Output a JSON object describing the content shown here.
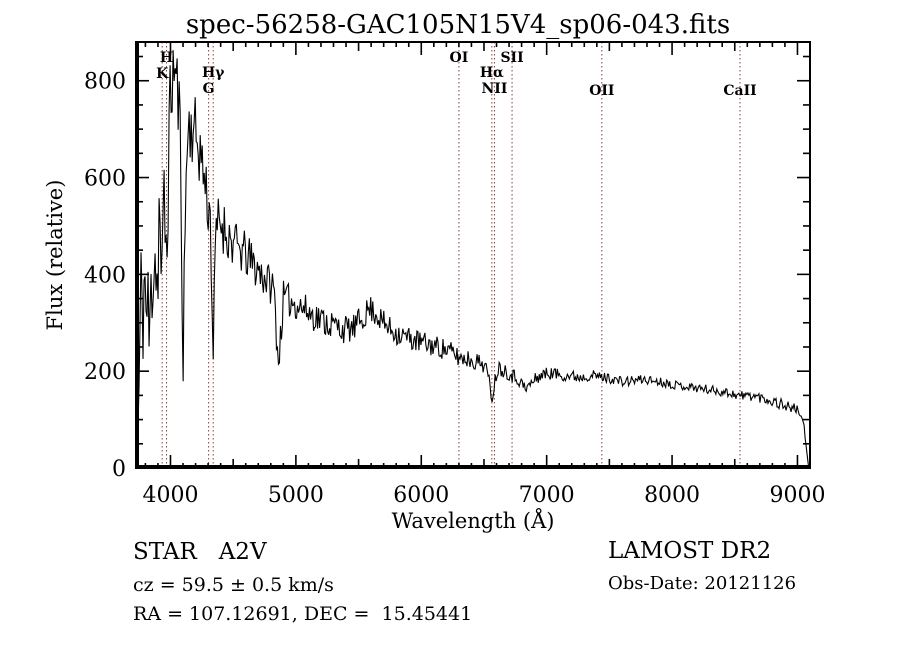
{
  "background_color": "#ffffff",
  "text_color": "#000000",
  "chart_data": {
    "type": "line",
    "title": "spec-56258-GAC105N15V4_sp06-043.fits",
    "xlabel": "Wavelength (Å)",
    "ylabel": "Flux (relative)",
    "xlim": [
      3725,
      9100
    ],
    "ylim": [
      0,
      880
    ],
    "x_major_ticks": [
      4000,
      5000,
      6000,
      7000,
      8000,
      9000
    ],
    "x_medium_step": 500,
    "x_minor_step": 100,
    "y_major_ticks": [
      0,
      200,
      400,
      600,
      800
    ],
    "y_minor_step": 50,
    "grid": false,
    "line_color": "#000000",
    "marker_line_color": "#8b3a3a",
    "line_markers": [
      {
        "label": "H",
        "wavelength": 3968.5,
        "label_y": 62
      },
      {
        "label": "K",
        "wavelength": 3933.7,
        "label_y": 78
      },
      {
        "label": "Hγ",
        "wavelength": 4340.5,
        "label_y": 77
      },
      {
        "label": "G",
        "wavelength": 4304.4,
        "label_y": 93
      },
      {
        "label": "OI",
        "wavelength": 6300.3,
        "label_y": 62
      },
      {
        "label": "Hα",
        "wavelength": 6562.8,
        "label_y": 77
      },
      {
        "label": "NII",
        "wavelength": 6583.4,
        "label_y": 93
      },
      {
        "label": "SII",
        "wavelength": 6724.0,
        "label_y": 62
      },
      {
        "label": "OII",
        "wavelength": 7440.0,
        "label_y": 95
      },
      {
        "label": "CaII",
        "wavelength": 8542.0,
        "label_y": 95
      }
    ],
    "spectrum": {
      "sample_step_angstrom": 8,
      "noise_seed": 11,
      "envelope_points": [
        [
          3725,
          200
        ],
        [
          3733,
          120
        ],
        [
          3745,
          60
        ],
        [
          3760,
          320
        ],
        [
          3790,
          380
        ],
        [
          3820,
          300
        ],
        [
          3835,
          260
        ],
        [
          3855,
          430
        ],
        [
          3880,
          480
        ],
        [
          3889,
          340
        ],
        [
          3910,
          540
        ],
        [
          3933,
          360
        ],
        [
          3950,
          560
        ],
        [
          3968,
          430
        ],
        [
          3990,
          700
        ],
        [
          4010,
          800
        ],
        [
          4030,
          830
        ],
        [
          4055,
          780
        ],
        [
          4075,
          720
        ],
        [
          4101,
          250
        ],
        [
          4130,
          680
        ],
        [
          4160,
          710
        ],
        [
          4200,
          690
        ],
        [
          4240,
          650
        ],
        [
          4270,
          600
        ],
        [
          4304,
          540
        ],
        [
          4320,
          510
        ],
        [
          4340,
          230
        ],
        [
          4365,
          500
        ],
        [
          4400,
          510
        ],
        [
          4440,
          490
        ],
        [
          4480,
          470
        ],
        [
          4530,
          455
        ],
        [
          4580,
          445
        ],
        [
          4630,
          430
        ],
        [
          4680,
          415
        ],
        [
          4730,
          400
        ],
        [
          4780,
          385
        ],
        [
          4825,
          370
        ],
        [
          4861,
          215
        ],
        [
          4900,
          350
        ],
        [
          4950,
          345
        ],
        [
          5000,
          340
        ],
        [
          5060,
          330
        ],
        [
          5120,
          318
        ],
        [
          5180,
          310
        ],
        [
          5250,
          300
        ],
        [
          5320,
          293
        ],
        [
          5390,
          286
        ],
        [
          5460,
          288
        ],
        [
          5530,
          310
        ],
        [
          5590,
          330
        ],
        [
          5640,
          320
        ],
        [
          5700,
          298
        ],
        [
          5760,
          286
        ],
        [
          5830,
          276
        ],
        [
          5900,
          268
        ],
        [
          5970,
          262
        ],
        [
          6040,
          256
        ],
        [
          6110,
          252
        ],
        [
          6180,
          246
        ],
        [
          6250,
          238
        ],
        [
          6300,
          228
        ],
        [
          6370,
          226
        ],
        [
          6440,
          220
        ],
        [
          6510,
          214
        ],
        [
          6563,
          148
        ],
        [
          6610,
          208
        ],
        [
          6670,
          202
        ],
        [
          6724,
          192
        ],
        [
          6780,
          183
        ],
        [
          6830,
          162
        ],
        [
          6880,
          176
        ],
        [
          6950,
          192
        ],
        [
          7030,
          196
        ],
        [
          7110,
          193
        ],
        [
          7190,
          190
        ],
        [
          7270,
          188
        ],
        [
          7350,
          192
        ],
        [
          7440,
          188
        ],
        [
          7530,
          184
        ],
        [
          7610,
          177
        ],
        [
          7690,
          181
        ],
        [
          7770,
          183
        ],
        [
          7860,
          180
        ],
        [
          7950,
          176
        ],
        [
          8040,
          171
        ],
        [
          8130,
          168
        ],
        [
          8220,
          165
        ],
        [
          8310,
          161
        ],
        [
          8400,
          158
        ],
        [
          8490,
          153
        ],
        [
          8542,
          149
        ],
        [
          8620,
          150
        ],
        [
          8700,
          146
        ],
        [
          8780,
          140
        ],
        [
          8860,
          133
        ],
        [
          8930,
          127
        ],
        [
          9000,
          120
        ],
        [
          9030,
          110
        ],
        [
          9055,
          80
        ],
        [
          9075,
          30
        ],
        [
          9090,
          0
        ]
      ],
      "noise_amplitude_points": [
        [
          3725,
          170
        ],
        [
          3800,
          160
        ],
        [
          3870,
          150
        ],
        [
          3940,
          130
        ],
        [
          4000,
          100
        ],
        [
          4080,
          85
        ],
        [
          4150,
          80
        ],
        [
          4300,
          70
        ],
        [
          4450,
          55
        ],
        [
          4600,
          48
        ],
        [
          4800,
          40
        ],
        [
          5000,
          34
        ],
        [
          5300,
          30
        ],
        [
          5600,
          28
        ],
        [
          5900,
          25
        ],
        [
          6200,
          22
        ],
        [
          6500,
          18
        ],
        [
          6800,
          15
        ],
        [
          7100,
          13
        ],
        [
          7400,
          11
        ],
        [
          7700,
          10
        ],
        [
          8100,
          9
        ],
        [
          8400,
          10
        ],
        [
          8700,
          11
        ],
        [
          8900,
          12
        ],
        [
          9000,
          10
        ],
        [
          9060,
          6
        ],
        [
          9090,
          1
        ]
      ]
    }
  },
  "annotations": {
    "class_label": "STAR   A2V",
    "cz": "cz = 59.5 ± 0.5 km/s",
    "ra_dec": "RA = 107.12691, DEC =  15.45441",
    "survey": "LAMOST DR2",
    "obs_date": "Obs-Date: 20121126"
  }
}
